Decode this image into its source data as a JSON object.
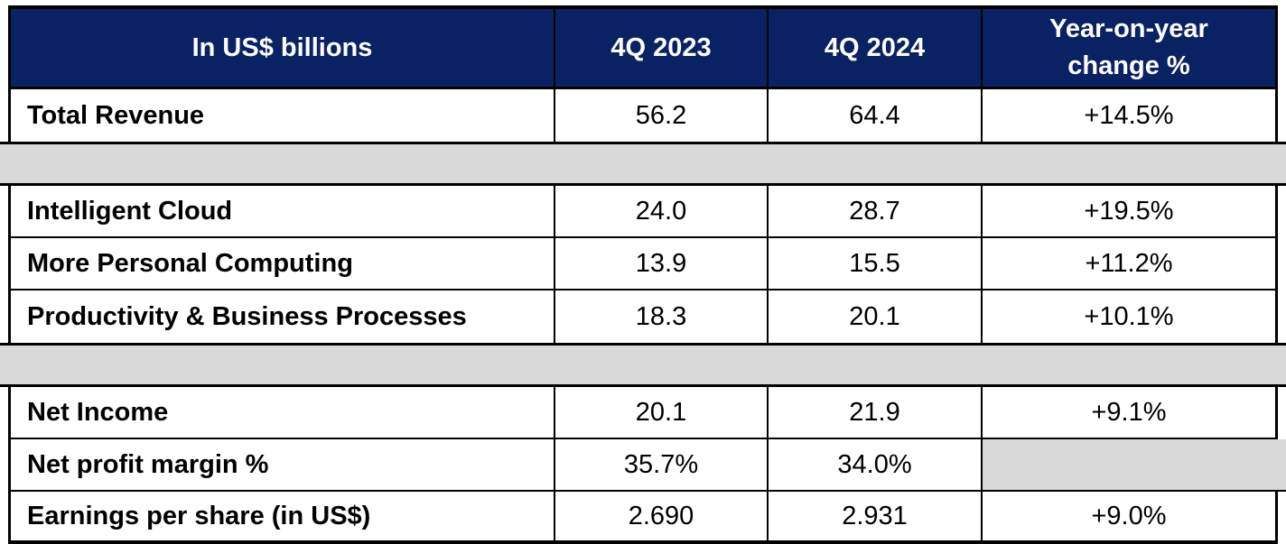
{
  "colors": {
    "header_bg": "#0A2263",
    "header_text": "#FFFFFF",
    "spacer_bg": "#D9D9D9",
    "border": "#000000",
    "body_text": "#000000"
  },
  "table": {
    "columns": [
      "In US$ billions",
      "4Q 2023",
      "4Q 2024",
      "Year-on-year\nchange %"
    ],
    "rows": [
      {
        "kind": "data",
        "label": "Total Revenue",
        "values": [
          "56.2",
          "64.4",
          "+14.5%"
        ]
      },
      {
        "kind": "spacer"
      },
      {
        "kind": "data",
        "label": "Intelligent Cloud",
        "values": [
          "24.0",
          "28.7",
          "+19.5%"
        ]
      },
      {
        "kind": "data",
        "label": "More Personal Computing",
        "values": [
          "13.9",
          "15.5",
          "+11.2%"
        ]
      },
      {
        "kind": "data",
        "label": "Productivity & Business Processes",
        "values": [
          "18.3",
          "20.1",
          "+10.1%"
        ]
      },
      {
        "kind": "spacer"
      },
      {
        "kind": "data",
        "label": "Net Income",
        "values": [
          "20.1",
          "21.9",
          "+9.1%"
        ]
      },
      {
        "kind": "data",
        "label": "Net profit margin %",
        "values": [
          "35.7%",
          "34.0%",
          ""
        ]
      },
      {
        "kind": "data",
        "label": "Earnings per share (in US$)",
        "values": [
          "2.690",
          "2.931",
          "+9.0%"
        ]
      }
    ]
  },
  "chart_data": {
    "type": "table",
    "title": "In US$ billions",
    "columns": [
      "In US$ billions",
      "4Q 2023",
      "4Q 2024",
      "Year-on-year change %"
    ],
    "rows": [
      [
        "Total Revenue",
        "56.2",
        "64.4",
        "+14.5%"
      ],
      [
        "Intelligent Cloud",
        "24.0",
        "28.7",
        "+19.5%"
      ],
      [
        "More Personal Computing",
        "13.9",
        "15.5",
        "+11.2%"
      ],
      [
        "Productivity & Business Processes",
        "18.3",
        "20.1",
        "+10.1%"
      ],
      [
        "Net Income",
        "20.1",
        "21.9",
        "+9.1%"
      ],
      [
        "Net profit margin %",
        "35.7%",
        "34.0%",
        null
      ],
      [
        "Earnings per share (in US$)",
        "2.690",
        "2.931",
        "+9.0%"
      ]
    ],
    "notes": "Gray spacer bands separate Total Revenue, segment breakdown, and profit rows; Net profit margin year-on-year cell is blank (gray)."
  }
}
